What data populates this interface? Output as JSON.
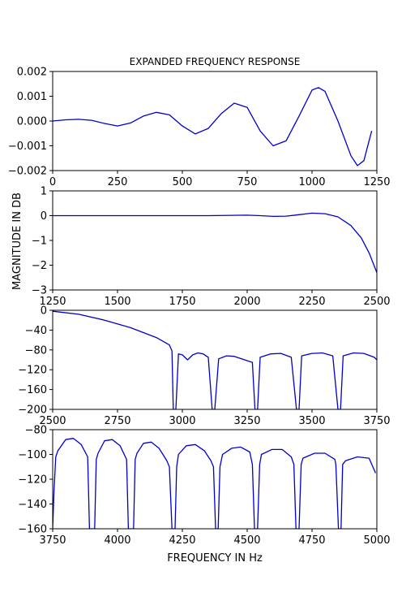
{
  "figure": {
    "title": "EXPANDED FREQUENCY RESPONSE",
    "ylabel": "MAGNITUDE IN DB",
    "xlabel": "FREQUENCY IN Hz",
    "line_color": "#0000cc",
    "grid": false
  },
  "chart_data": [
    {
      "type": "line",
      "title": "EXPANDED FREQUENCY RESPONSE",
      "xlim": [
        0,
        1250
      ],
      "ylim": [
        -0.002,
        0.002
      ],
      "xticks": [
        0,
        250,
        500,
        750,
        1000,
        1250
      ],
      "xtick_labels": [
        "0",
        "250",
        "500",
        "750",
        "1000",
        "1250"
      ],
      "yticks": [
        0.002,
        0.001,
        0.0,
        -0.001,
        -0.002
      ],
      "ytick_labels": [
        "0.002",
        "0.001",
        "0.000",
        "−0.001",
        "−0.002"
      ],
      "x": [
        0,
        50,
        100,
        150,
        200,
        250,
        300,
        350,
        400,
        450,
        500,
        550,
        600,
        650,
        700,
        750,
        800,
        850,
        900,
        950,
        1000,
        1025,
        1050,
        1100,
        1150,
        1175,
        1200,
        1230
      ],
      "y": [
        0.0,
        5e-05,
        7e-05,
        3e-05,
        -0.0001,
        -0.0002,
        -8e-05,
        0.0002,
        0.00035,
        0.00025,
        -0.0002,
        -0.00052,
        -0.0003,
        0.0003,
        0.00072,
        0.00055,
        -0.0004,
        -0.001,
        -0.0008,
        0.0002,
        0.00125,
        0.00135,
        0.0012,
        0.0,
        -0.0014,
        -0.0018,
        -0.0016,
        -0.0004
      ]
    },
    {
      "type": "line",
      "ylabel": "MAGNITUDE IN DB",
      "xlim": [
        1250,
        2500
      ],
      "ylim": [
        -3,
        1
      ],
      "xticks": [
        1250,
        1500,
        1750,
        2000,
        2250,
        2500
      ],
      "xtick_labels": [
        "1250",
        "1500",
        "1750",
        "2000",
        "2250",
        "2500"
      ],
      "yticks": [
        1,
        0,
        -1,
        -2,
        -3
      ],
      "ytick_labels": [
        "1",
        "0",
        "−1",
        "−2",
        "−3"
      ],
      "x": [
        1250,
        1400,
        1550,
        1700,
        1850,
        2000,
        2050,
        2100,
        2150,
        2200,
        2250,
        2300,
        2350,
        2400,
        2440,
        2470,
        2500
      ],
      "y": [
        0.0,
        0.0,
        0.0,
        0.0,
        0.0,
        0.02,
        0.0,
        -0.03,
        -0.02,
        0.04,
        0.1,
        0.08,
        -0.05,
        -0.4,
        -0.9,
        -1.5,
        -2.3
      ]
    },
    {
      "type": "line",
      "xlim": [
        2500,
        3750
      ],
      "ylim": [
        -200,
        0
      ],
      "xticks": [
        2500,
        2750,
        3000,
        3250,
        3500,
        3750
      ],
      "xtick_labels": [
        "2500",
        "2750",
        "3000",
        "3250",
        "3500",
        "3750"
      ],
      "yticks": [
        0,
        -40,
        -80,
        -120,
        -160,
        -200
      ],
      "ytick_labels": [
        "0",
        "−40",
        "−80",
        "−120",
        "−160",
        "−200"
      ],
      "x": [
        2500,
        2600,
        2700,
        2800,
        2900,
        2950,
        2960,
        2965,
        2975,
        2985,
        3000,
        3020,
        3040,
        3060,
        3080,
        3100,
        3115,
        3125,
        3140,
        3170,
        3200,
        3240,
        3270,
        3280,
        3290,
        3300,
        3340,
        3380,
        3420,
        3440,
        3450,
        3460,
        3500,
        3540,
        3580,
        3600,
        3610,
        3620,
        3660,
        3700,
        3740,
        3750
      ],
      "y": [
        -2,
        -8,
        -20,
        -35,
        -55,
        -70,
        -82,
        -200,
        -200,
        -88,
        -90,
        -100,
        -90,
        -86,
        -88,
        -95,
        -200,
        -200,
        -98,
        -92,
        -93,
        -100,
        -105,
        -200,
        -200,
        -95,
        -88,
        -87,
        -95,
        -200,
        -200,
        -92,
        -87,
        -86,
        -92,
        -200,
        -200,
        -92,
        -86,
        -87,
        -95,
        -100
      ]
    },
    {
      "type": "line",
      "xlabel": "FREQUENCY IN Hz",
      "xlim": [
        3750,
        5000
      ],
      "ylim": [
        -160,
        -80
      ],
      "xticks": [
        3750,
        4000,
        4250,
        4500,
        4750,
        5000
      ],
      "xtick_labels": [
        "3750",
        "4000",
        "4250",
        "4500",
        "4750",
        "5000"
      ],
      "yticks": [
        -80,
        -100,
        -120,
        -140,
        -160
      ],
      "ytick_labels": [
        "−80",
        "−100",
        "−120",
        "−140",
        "−160"
      ],
      "x": [
        3750,
        3755,
        3762,
        3770,
        3800,
        3830,
        3860,
        3885,
        3892,
        3898,
        3912,
        3918,
        3925,
        3950,
        3980,
        4010,
        4035,
        4042,
        4048,
        4062,
        4068,
        4075,
        4100,
        4130,
        4160,
        4190,
        4200,
        4210,
        4222,
        4228,
        4235,
        4265,
        4300,
        4335,
        4360,
        4370,
        4378,
        4388,
        4395,
        4405,
        4440,
        4475,
        4510,
        4520,
        4528,
        4540,
        4548,
        4555,
        4595,
        4635,
        4670,
        4680,
        4688,
        4700,
        4708,
        4715,
        4760,
        4800,
        4838,
        4842,
        4852,
        4862,
        4868,
        4880,
        4925,
        4970,
        4995
      ],
      "y": [
        -160,
        -130,
        -102,
        -97,
        -88,
        -87,
        -92,
        -102,
        -160,
        -160,
        -160,
        -104,
        -99,
        -89,
        -88,
        -93,
        -104,
        -160,
        -160,
        -160,
        -104,
        -99,
        -91,
        -90,
        -95,
        -105,
        -110,
        -160,
        -160,
        -110,
        -100,
        -93,
        -92,
        -97,
        -105,
        -110,
        -160,
        -160,
        -110,
        -100,
        -95,
        -94,
        -98,
        -108,
        -160,
        -160,
        -108,
        -100,
        -96,
        -96,
        -102,
        -108,
        -160,
        -160,
        -108,
        -103,
        -99,
        -99,
        -104,
        -108,
        -160,
        -160,
        -108,
        -105,
        -102,
        -103,
        -115
      ]
    }
  ]
}
